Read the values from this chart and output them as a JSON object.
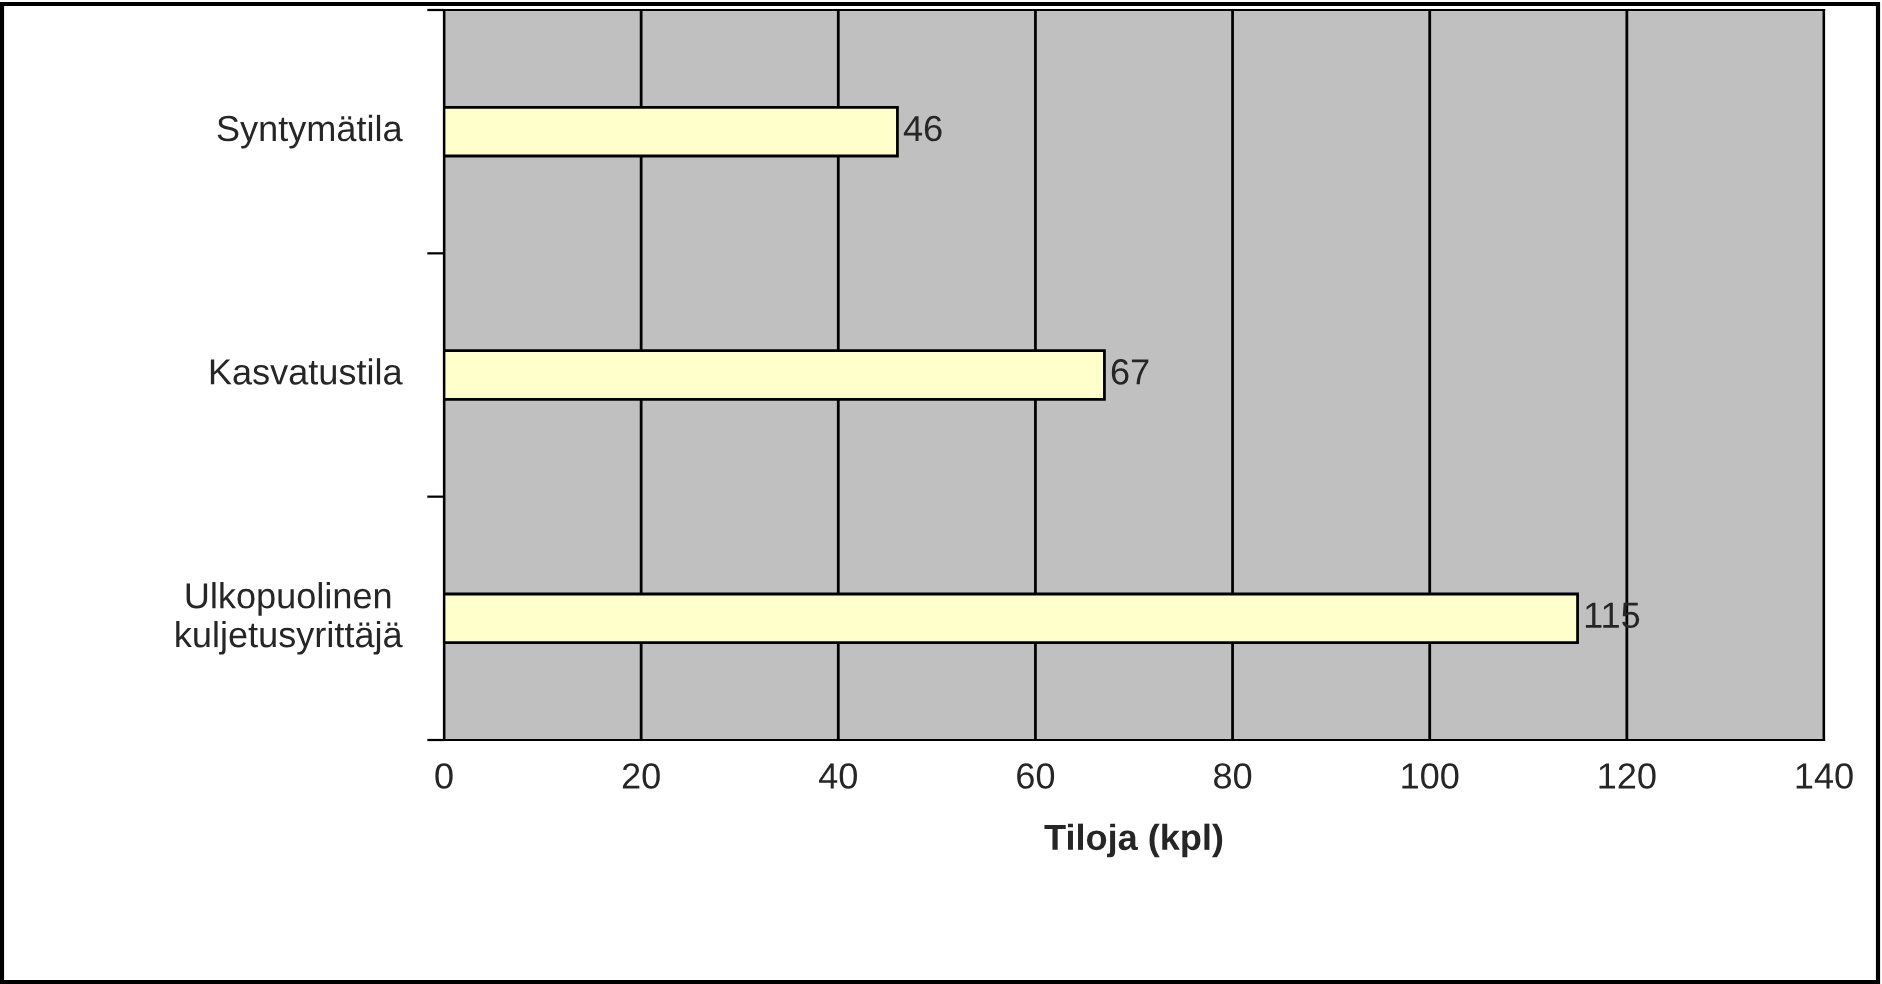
{
  "chart_data": {
    "type": "bar",
    "orientation": "horizontal",
    "xlabel": "Tiloja (kpl)",
    "categories": [
      "Syntymätila",
      "Kasvatustila",
      "Ulkopuolinen kuljetusyrittäjä"
    ],
    "values": [
      46,
      67,
      115
    ],
    "color": "#ffffcc",
    "xlim": [
      0,
      140
    ],
    "xticks": [
      0,
      20,
      40,
      60,
      80,
      100,
      120,
      140
    ],
    "grid": "x",
    "data_labels": true
  }
}
